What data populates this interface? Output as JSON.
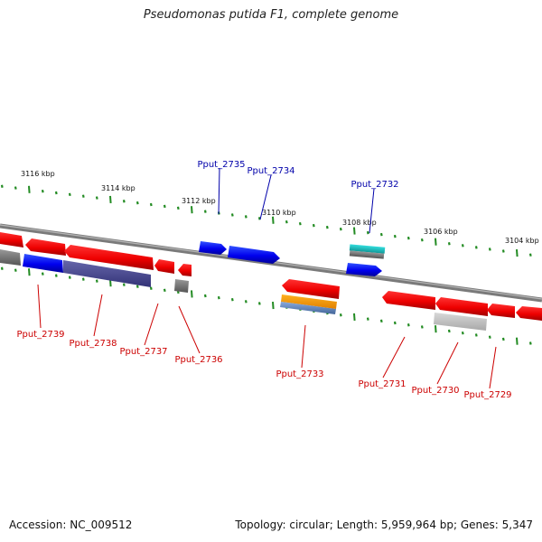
{
  "title": "Pseudomonas putida F1, complete genome",
  "footer": {
    "accession": "Accession: NC_009512",
    "summary": "Topology: circular; Length: 5,959,964 bp; Genes: 5,347"
  },
  "colors": {
    "forward_gene": "#0000ee",
    "reverse_gene": "#ee0000",
    "forward_label": "#0000aa",
    "reverse_label": "#cc0000",
    "backbone": "#808080",
    "tick": "#228b22"
  },
  "scale_labels": [
    "3116 kbp",
    "3114 kbp",
    "3112 kbp",
    "3110 kbp",
    "3108 kbp",
    "3106 kbp",
    "3104 kbp"
  ],
  "forward_genes": [
    {
      "label": "Pput_2735",
      "strand": "forward"
    },
    {
      "label": "Pput_2734",
      "strand": "forward"
    },
    {
      "label": "Pput_2732",
      "strand": "forward"
    }
  ],
  "reverse_genes": [
    {
      "label": "Pput_2739",
      "strand": "reverse"
    },
    {
      "label": "Pput_2738",
      "strand": "reverse"
    },
    {
      "label": "Pput_2737",
      "strand": "reverse"
    },
    {
      "label": "Pput_2736",
      "strand": "reverse"
    },
    {
      "label": "Pput_2733",
      "strand": "reverse"
    },
    {
      "label": "Pput_2731",
      "strand": "reverse"
    },
    {
      "label": "Pput_2730",
      "strand": "reverse"
    },
    {
      "label": "Pput_2729",
      "strand": "reverse"
    }
  ]
}
